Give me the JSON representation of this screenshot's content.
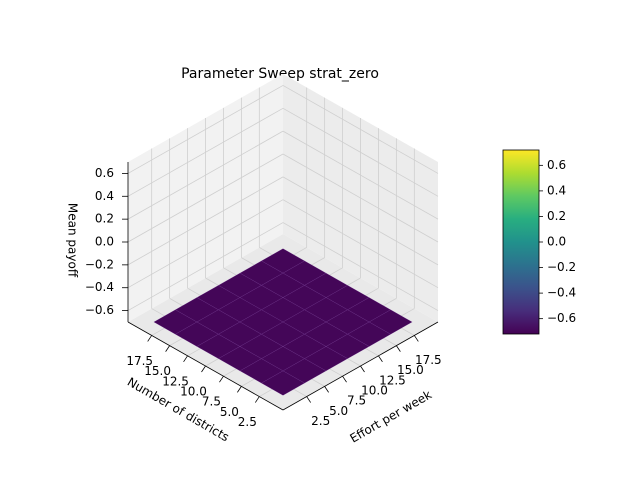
{
  "chart_data": {
    "type": "surface3d",
    "title": "Parameter Sweep strat_zero",
    "xlabel": "Effort per week",
    "ylabel": "Number of districts",
    "zlabel": "Mean payoff",
    "x": [
      1,
      4,
      7,
      10,
      13,
      16,
      19
    ],
    "y": [
      1,
      4,
      7,
      10,
      13,
      16,
      19
    ],
    "z": [
      [
        -0.7,
        -0.7,
        -0.7,
        -0.7,
        -0.7,
        -0.7,
        -0.7
      ],
      [
        -0.7,
        -0.7,
        -0.7,
        -0.7,
        -0.7,
        -0.7,
        -0.7
      ],
      [
        -0.7,
        -0.7,
        -0.7,
        -0.7,
        -0.7,
        -0.7,
        -0.7
      ],
      [
        -0.7,
        -0.7,
        -0.7,
        -0.7,
        -0.7,
        -0.7,
        -0.7
      ],
      [
        -0.7,
        -0.7,
        -0.7,
        -0.7,
        -0.7,
        -0.7,
        -0.7
      ],
      [
        -0.7,
        -0.7,
        -0.7,
        -0.7,
        -0.7,
        -0.7,
        -0.7
      ],
      [
        -0.7,
        -0.7,
        -0.7,
        -0.7,
        -0.7,
        -0.7,
        -0.7
      ]
    ],
    "xlim": [
      -0.8,
      20.8
    ],
    "ylim": [
      -0.8,
      20.8
    ],
    "zlim": [
      -0.7,
      0.7
    ],
    "xticks": [
      2.5,
      {
        "value": 5,
        "label": "5.0"
      },
      7.5,
      {
        "value": 10,
        "label": "10.0"
      },
      12.5,
      {
        "value": 15,
        "label": "15.0"
      },
      17.5
    ],
    "yticks": [
      2.5,
      {
        "value": 5,
        "label": "5.0"
      },
      7.5,
      {
        "value": 10,
        "label": "10.0"
      },
      12.5,
      {
        "value": 15,
        "label": "15.0"
      },
      17.5
    ],
    "zticks": [
      {
        "value": -0.6,
        "label": "−0.6"
      },
      {
        "value": -0.4,
        "label": "−0.4"
      },
      {
        "value": -0.2,
        "label": "−0.2"
      },
      {
        "value": 0,
        "label": "0.0"
      },
      0.2,
      0.4,
      0.6
    ],
    "colormap": "viridis",
    "clim": [
      -0.72,
      0.72
    ],
    "colorbar_ticks": [
      {
        "value": -0.6,
        "label": "−0.6"
      },
      {
        "value": -0.4,
        "label": "−0.4"
      },
      {
        "value": -0.2,
        "label": "−0.2"
      },
      {
        "value": 0,
        "label": "0.0"
      },
      0.2,
      0.4,
      0.6
    ],
    "grid": true
  }
}
